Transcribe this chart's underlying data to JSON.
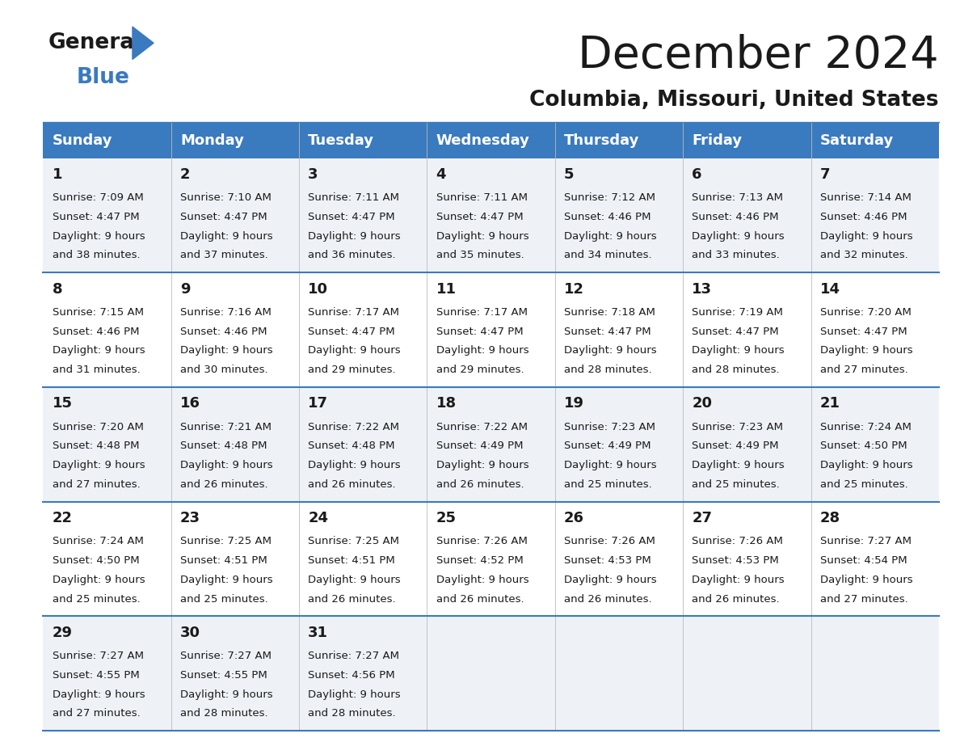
{
  "title": "December 2024",
  "subtitle": "Columbia, Missouri, United States",
  "header_color": "#3a7abf",
  "header_text_color": "#ffffff",
  "days_of_week": [
    "Sunday",
    "Monday",
    "Tuesday",
    "Wednesday",
    "Thursday",
    "Friday",
    "Saturday"
  ],
  "background_color": "#ffffff",
  "cell_bg_even": "#eef2f7",
  "cell_bg_odd": "#ffffff",
  "row_line_color": "#3a7abf",
  "text_color": "#1a1a1a",
  "calendar_data": [
    [
      {
        "day": 1,
        "sunrise": "7:09 AM",
        "sunset": "4:47 PM",
        "daylight": "9 hours and 38 minutes."
      },
      {
        "day": 2,
        "sunrise": "7:10 AM",
        "sunset": "4:47 PM",
        "daylight": "9 hours and 37 minutes."
      },
      {
        "day": 3,
        "sunrise": "7:11 AM",
        "sunset": "4:47 PM",
        "daylight": "9 hours and 36 minutes."
      },
      {
        "day": 4,
        "sunrise": "7:11 AM",
        "sunset": "4:47 PM",
        "daylight": "9 hours and 35 minutes."
      },
      {
        "day": 5,
        "sunrise": "7:12 AM",
        "sunset": "4:46 PM",
        "daylight": "9 hours and 34 minutes."
      },
      {
        "day": 6,
        "sunrise": "7:13 AM",
        "sunset": "4:46 PM",
        "daylight": "9 hours and 33 minutes."
      },
      {
        "day": 7,
        "sunrise": "7:14 AM",
        "sunset": "4:46 PM",
        "daylight": "9 hours and 32 minutes."
      }
    ],
    [
      {
        "day": 8,
        "sunrise": "7:15 AM",
        "sunset": "4:46 PM",
        "daylight": "9 hours and 31 minutes."
      },
      {
        "day": 9,
        "sunrise": "7:16 AM",
        "sunset": "4:46 PM",
        "daylight": "9 hours and 30 minutes."
      },
      {
        "day": 10,
        "sunrise": "7:17 AM",
        "sunset": "4:47 PM",
        "daylight": "9 hours and 29 minutes."
      },
      {
        "day": 11,
        "sunrise": "7:17 AM",
        "sunset": "4:47 PM",
        "daylight": "9 hours and 29 minutes."
      },
      {
        "day": 12,
        "sunrise": "7:18 AM",
        "sunset": "4:47 PM",
        "daylight": "9 hours and 28 minutes."
      },
      {
        "day": 13,
        "sunrise": "7:19 AM",
        "sunset": "4:47 PM",
        "daylight": "9 hours and 28 minutes."
      },
      {
        "day": 14,
        "sunrise": "7:20 AM",
        "sunset": "4:47 PM",
        "daylight": "9 hours and 27 minutes."
      }
    ],
    [
      {
        "day": 15,
        "sunrise": "7:20 AM",
        "sunset": "4:48 PM",
        "daylight": "9 hours and 27 minutes."
      },
      {
        "day": 16,
        "sunrise": "7:21 AM",
        "sunset": "4:48 PM",
        "daylight": "9 hours and 26 minutes."
      },
      {
        "day": 17,
        "sunrise": "7:22 AM",
        "sunset": "4:48 PM",
        "daylight": "9 hours and 26 minutes."
      },
      {
        "day": 18,
        "sunrise": "7:22 AM",
        "sunset": "4:49 PM",
        "daylight": "9 hours and 26 minutes."
      },
      {
        "day": 19,
        "sunrise": "7:23 AM",
        "sunset": "4:49 PM",
        "daylight": "9 hours and 25 minutes."
      },
      {
        "day": 20,
        "sunrise": "7:23 AM",
        "sunset": "4:49 PM",
        "daylight": "9 hours and 25 minutes."
      },
      {
        "day": 21,
        "sunrise": "7:24 AM",
        "sunset": "4:50 PM",
        "daylight": "9 hours and 25 minutes."
      }
    ],
    [
      {
        "day": 22,
        "sunrise": "7:24 AM",
        "sunset": "4:50 PM",
        "daylight": "9 hours and 25 minutes."
      },
      {
        "day": 23,
        "sunrise": "7:25 AM",
        "sunset": "4:51 PM",
        "daylight": "9 hours and 25 minutes."
      },
      {
        "day": 24,
        "sunrise": "7:25 AM",
        "sunset": "4:51 PM",
        "daylight": "9 hours and 26 minutes."
      },
      {
        "day": 25,
        "sunrise": "7:26 AM",
        "sunset": "4:52 PM",
        "daylight": "9 hours and 26 minutes."
      },
      {
        "day": 26,
        "sunrise": "7:26 AM",
        "sunset": "4:53 PM",
        "daylight": "9 hours and 26 minutes."
      },
      {
        "day": 27,
        "sunrise": "7:26 AM",
        "sunset": "4:53 PM",
        "daylight": "9 hours and 26 minutes."
      },
      {
        "day": 28,
        "sunrise": "7:27 AM",
        "sunset": "4:54 PM",
        "daylight": "9 hours and 27 minutes."
      }
    ],
    [
      {
        "day": 29,
        "sunrise": "7:27 AM",
        "sunset": "4:55 PM",
        "daylight": "9 hours and 27 minutes."
      },
      {
        "day": 30,
        "sunrise": "7:27 AM",
        "sunset": "4:55 PM",
        "daylight": "9 hours and 28 minutes."
      },
      {
        "day": 31,
        "sunrise": "7:27 AM",
        "sunset": "4:56 PM",
        "daylight": "9 hours and 28 minutes."
      },
      null,
      null,
      null,
      null
    ]
  ],
  "logo_triangle_color": "#3a7abf",
  "title_fontsize": 40,
  "subtitle_fontsize": 19,
  "header_fontsize": 13,
  "day_num_fontsize": 13,
  "cell_text_fontsize": 9.5,
  "fig_width": 11.88,
  "fig_height": 9.18,
  "fig_dpi": 100
}
